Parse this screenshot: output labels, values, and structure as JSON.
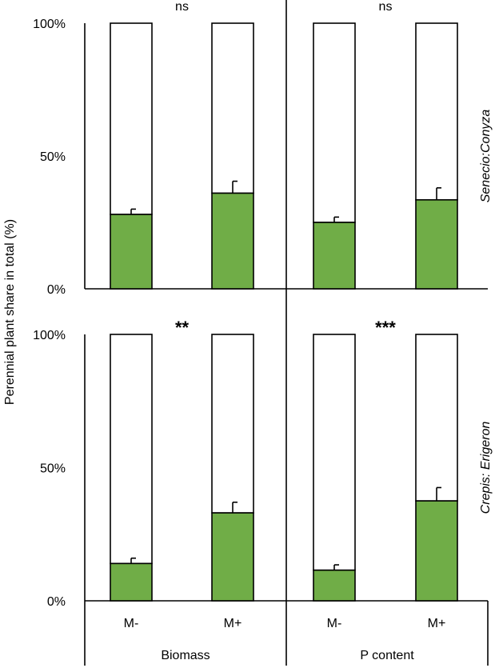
{
  "chart_data": {
    "type": "bar",
    "ylabel": "Perennial plant share in total (%)",
    "ylim": [
      0,
      100
    ],
    "yticks": [
      "0%",
      "50%",
      "100%"
    ],
    "categories": [
      "M-",
      "M+"
    ],
    "groups": [
      "Biomass",
      "P content"
    ],
    "rows": [
      {
        "label": "Senecio:Conyza",
        "panels": [
          {
            "group": "Biomass",
            "significance": "ns",
            "values": [
              28,
              36
            ],
            "errors": [
              2,
              4.5
            ]
          },
          {
            "group": "P content",
            "significance": "ns",
            "values": [
              25,
              33.5
            ],
            "errors": [
              2,
              4.5
            ]
          }
        ]
      },
      {
        "label": "Crepis: Erigeron",
        "panels": [
          {
            "group": "Biomass",
            "significance": "**",
            "values": [
              14,
              33
            ],
            "errors": [
              2,
              4
            ]
          },
          {
            "group": "P content",
            "significance": "***",
            "values": [
              11.5,
              37.5
            ],
            "errors": [
              2,
              5
            ]
          }
        ]
      }
    ],
    "colors": {
      "bar_fill": "#70ad47",
      "remainder_fill": "#ffffff",
      "stroke": "#000000"
    },
    "grid": false,
    "legend": "none"
  }
}
